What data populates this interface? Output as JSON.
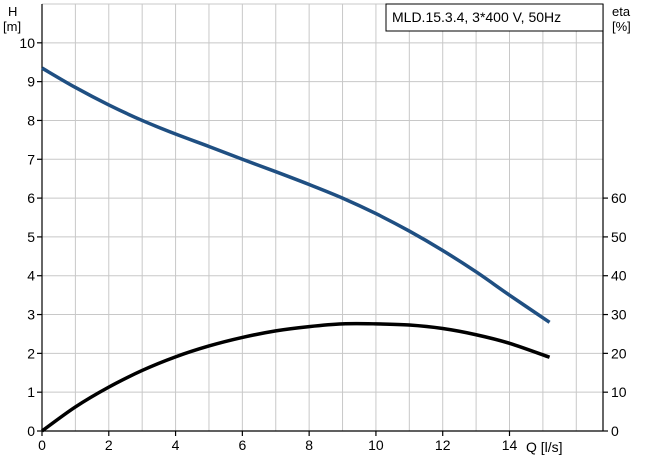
{
  "chart_data": {
    "type": "line",
    "legend_box": "MLD.15.3.4, 3*400 V, 50Hz",
    "legend_placement": "top-right",
    "grid": true,
    "x_axis": {
      "label": "Q [l/s]",
      "range": [
        0,
        16.8
      ],
      "ticks": [
        0,
        2,
        4,
        6,
        8,
        10,
        12,
        14
      ]
    },
    "y_axis_left": {
      "label_line1": "H",
      "label_line2": "[m]",
      "range": [
        0,
        11
      ],
      "ticks": [
        0,
        1,
        2,
        3,
        4,
        5,
        6,
        7,
        8,
        9,
        10
      ]
    },
    "y_axis_right": {
      "label_line1": "eta",
      "label_line2": "[%]",
      "range": [
        0,
        110
      ],
      "ticks": [
        0,
        10,
        20,
        30,
        40,
        50,
        60
      ]
    },
    "series": [
      {
        "axis": "left",
        "color": "#1f4f82",
        "x": [
          0,
          1,
          2,
          3,
          4,
          5,
          6,
          7,
          8,
          9,
          10,
          11,
          12,
          13,
          14,
          15.2
        ],
        "y": [
          9.35,
          8.85,
          8.4,
          8.0,
          7.65,
          7.33,
          7.0,
          6.68,
          6.35,
          6.0,
          5.6,
          5.15,
          4.65,
          4.1,
          3.5,
          2.8
        ]
      },
      {
        "axis": "right",
        "color": "#000000",
        "x": [
          0,
          1,
          2,
          3,
          4,
          5,
          6,
          7,
          8,
          9,
          10,
          11,
          12,
          13,
          14,
          15.2
        ],
        "y": [
          0,
          6.2,
          11.3,
          15.6,
          19.1,
          21.9,
          24.1,
          25.8,
          26.9,
          27.6,
          27.6,
          27.3,
          26.4,
          24.8,
          22.6,
          19.0
        ]
      }
    ]
  }
}
